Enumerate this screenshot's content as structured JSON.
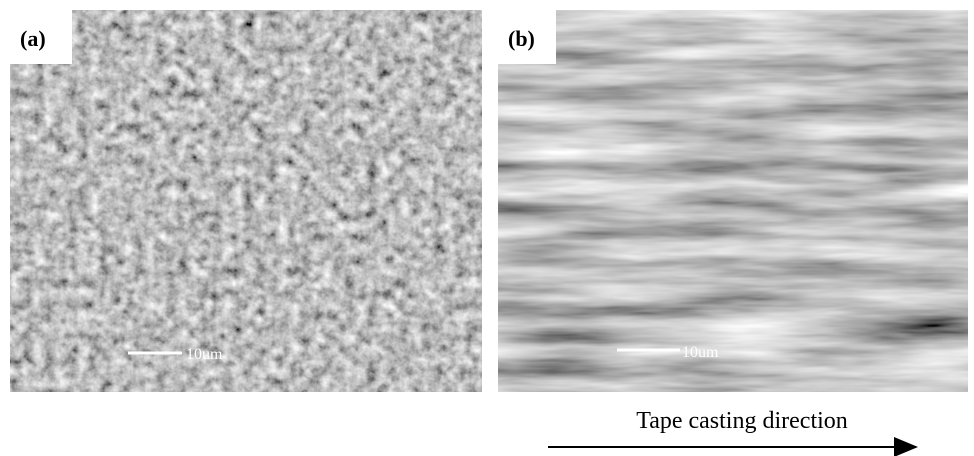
{
  "panels": [
    {
      "label": "(a)",
      "scale_label": "10um"
    },
    {
      "label": "(b)",
      "scale_label": "10um"
    }
  ],
  "caption": "Tape casting direction"
}
